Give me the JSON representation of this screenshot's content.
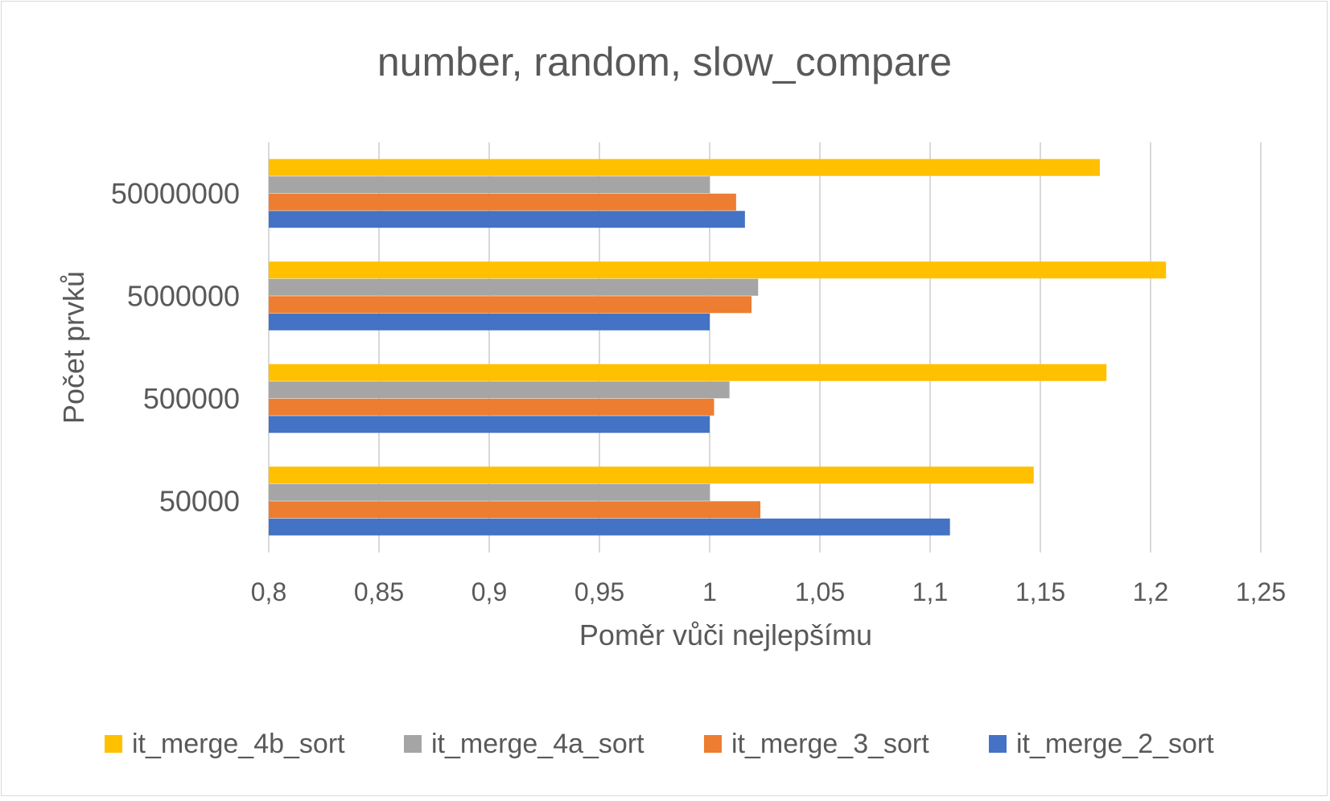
{
  "chart_data": {
    "type": "bar",
    "orientation": "horizontal",
    "title": "number, random, slow_compare",
    "xlabel": "Poměr vůči nejlepšímu",
    "ylabel": "Počet prvků",
    "xlim": [
      0.8,
      1.25
    ],
    "xticks": [
      "0,8",
      "0,85",
      "0,9",
      "0,95",
      "1",
      "1,05",
      "1,1",
      "1,15",
      "1,2",
      "1,25"
    ],
    "categories": [
      "50000",
      "500000",
      "5000000",
      "50000000"
    ],
    "series": [
      {
        "name": "it_merge_2_sort",
        "color": "#4472C4",
        "values": [
          1.109,
          1.0,
          1.0,
          1.016
        ]
      },
      {
        "name": "it_merge_3_sort",
        "color": "#ED7D31",
        "values": [
          1.023,
          1.002,
          1.019,
          1.012
        ]
      },
      {
        "name": "it_merge_4a_sort",
        "color": "#A5A5A5",
        "values": [
          1.0,
          1.009,
          1.022,
          1.0
        ]
      },
      {
        "name": "it_merge_4b_sort",
        "color": "#FFC000",
        "values": [
          1.147,
          1.18,
          1.207,
          1.177
        ]
      }
    ],
    "legend_order": [
      "it_merge_4b_sort",
      "it_merge_4a_sort",
      "it_merge_3_sort",
      "it_merge_2_sort"
    ],
    "legend_position": "bottom",
    "grid": "vertical"
  }
}
